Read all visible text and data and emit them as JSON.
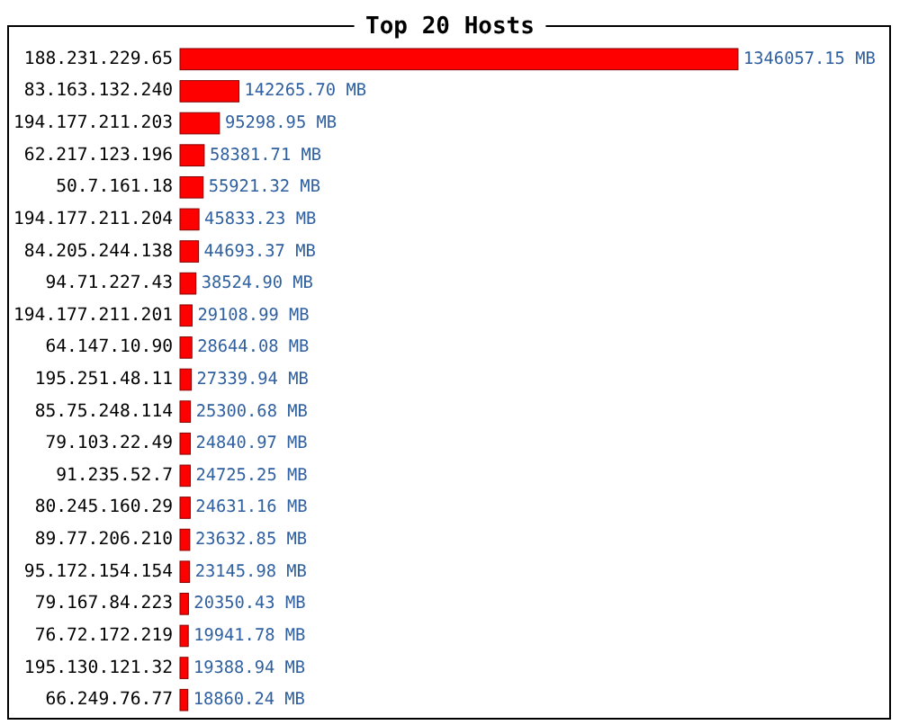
{
  "chart_data": {
    "type": "bar",
    "orientation": "horizontal",
    "title": "Top 20 Hosts",
    "categories": [
      "188.231.229.65",
      "83.163.132.240",
      "194.177.211.203",
      "62.217.123.196",
      "50.7.161.18",
      "194.177.211.204",
      "84.205.244.138",
      "94.71.227.43",
      "194.177.211.201",
      "64.147.10.90",
      "195.251.48.11",
      "85.75.248.114",
      "79.103.22.49",
      "91.235.52.7",
      "80.245.160.29",
      "89.77.206.210",
      "95.172.154.154",
      "79.167.84.223",
      "76.72.172.219",
      "195.130.121.32",
      "66.249.76.77"
    ],
    "values": [
      1346057.15,
      142265.7,
      95298.95,
      58381.71,
      55921.32,
      45833.23,
      44693.37,
      38524.9,
      29108.99,
      28644.08,
      27339.94,
      25300.68,
      24840.97,
      24725.25,
      24631.16,
      23632.85,
      23145.98,
      20350.43,
      19941.78,
      19388.94,
      18860.24
    ],
    "value_labels": [
      "1346057.15 MB",
      "142265.70 MB",
      "95298.95 MB",
      "58381.71 MB",
      "55921.32 MB",
      "45833.23 MB",
      "44693.37 MB",
      "38524.90 MB",
      "29108.99 MB",
      "28644.08 MB",
      "27339.94 MB",
      "25300.68 MB",
      "24840.97 MB",
      "24725.25 MB",
      "24631.16 MB",
      "23632.85 MB",
      "23145.98 MB",
      "20350.43 MB",
      "19941.78 MB",
      "19388.94 MB",
      "18860.24 MB"
    ],
    "color": "#ff0000"
  }
}
